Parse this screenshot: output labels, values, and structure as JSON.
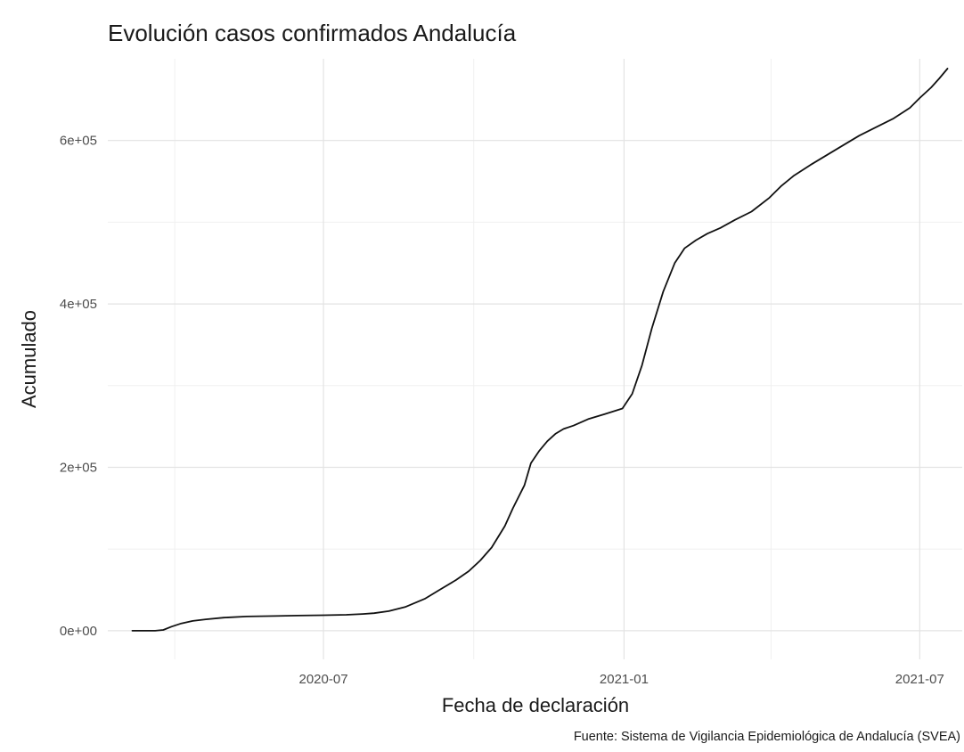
{
  "chart_data": {
    "type": "line",
    "title": "Evolución casos confirmados Andalucía",
    "xlabel": "Fecha de declaración",
    "ylabel": "Acumulado",
    "caption": "Fuente: Sistema de Vigilancia Epidemiológica de Andalucía (SVEA)",
    "x_ticks": [
      "2020-07-01",
      "2021-01-01",
      "2021-07-01"
    ],
    "x_tick_labels": [
      "2020-07",
      "2021-01",
      "2021-07"
    ],
    "x_minor_ticks": [
      "2020-04-01",
      "2020-10-01",
      "2021-04-01"
    ],
    "y_ticks": [
      0,
      200000,
      400000,
      600000
    ],
    "y_tick_labels": [
      "0e+00",
      "2e+05",
      "4e+05",
      "6e+05"
    ],
    "y_minor_ticks": [
      100000,
      300000,
      500000
    ],
    "xlim": [
      "2020-02-20",
      "2021-07-27"
    ],
    "ylim": [
      -35000,
      700000
    ],
    "grid": true,
    "series": [
      {
        "color": "#111111",
        "x": [
          "2020-03-06",
          "2020-03-15",
          "2020-03-20",
          "2020-03-25",
          "2020-03-30",
          "2020-04-05",
          "2020-04-12",
          "2020-04-20",
          "2020-05-01",
          "2020-05-15",
          "2020-06-01",
          "2020-06-15",
          "2020-07-01",
          "2020-07-15",
          "2020-07-25",
          "2020-08-01",
          "2020-08-10",
          "2020-08-20",
          "2020-09-01",
          "2020-09-10",
          "2020-09-20",
          "2020-09-28",
          "2020-10-05",
          "2020-10-12",
          "2020-10-20",
          "2020-10-25",
          "2020-11-01",
          "2020-11-05",
          "2020-11-10",
          "2020-11-15",
          "2020-11-20",
          "2020-11-25",
          "2020-12-01",
          "2020-12-10",
          "2020-12-20",
          "2020-12-31",
          "2021-01-06",
          "2021-01-12",
          "2021-01-18",
          "2021-01-25",
          "2021-02-01",
          "2021-02-07",
          "2021-02-14",
          "2021-02-21",
          "2021-03-01",
          "2021-03-10",
          "2021-03-20",
          "2021-03-31",
          "2021-04-07",
          "2021-04-15",
          "2021-04-25",
          "2021-05-05",
          "2021-05-15",
          "2021-05-25",
          "2021-06-05",
          "2021-06-15",
          "2021-06-25",
          "2021-07-01",
          "2021-07-08",
          "2021-07-13",
          "2021-07-18"
        ],
        "y": [
          0,
          0,
          0,
          1000,
          5000,
          9000,
          12000,
          14000,
          16000,
          17500,
          18000,
          18500,
          19000,
          19500,
          20500,
          21500,
          24000,
          29000,
          39000,
          50000,
          62000,
          73000,
          86000,
          102000,
          128000,
          150000,
          178000,
          205000,
          220000,
          232000,
          241000,
          247000,
          251000,
          259000,
          265000,
          272000,
          290000,
          325000,
          370000,
          415000,
          450000,
          468000,
          478000,
          486000,
          493000,
          503000,
          513000,
          530000,
          544000,
          557000,
          570000,
          582000,
          594000,
          606000,
          617000,
          627000,
          640000,
          652000,
          665000,
          676000,
          688000
        ]
      }
    ]
  }
}
